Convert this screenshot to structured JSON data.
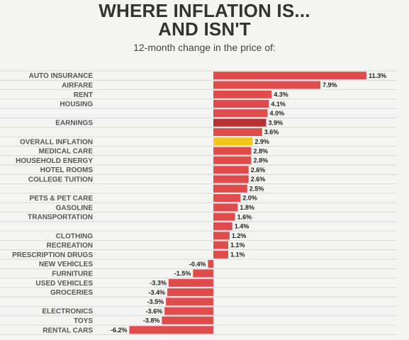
{
  "title": {
    "line1": "WHERE INFLATION IS...",
    "line2": "AND ISN'T"
  },
  "subtitle": "12-month change in the price of:",
  "colors": {
    "bar": "#e04c4c",
    "earnings": "#b63232",
    "overall": "#f5c518",
    "grid": "#cfd3d6"
  },
  "chart_data": {
    "type": "bar",
    "orientation": "horizontal",
    "title": "WHERE INFLATION IS... AND ISN'T",
    "subtitle": "12-month change in the price of:",
    "xlabel": "",
    "ylabel": "",
    "xlim": [
      -6.2,
      11.3
    ],
    "grid": true,
    "categories": [
      "AUTO INSURANCE",
      "AIRFARE",
      "RENT",
      "HOUSING",
      "",
      "EARNINGS",
      "",
      "OVERALL INFLATION",
      "MEDICAL CARE",
      "HOUSEHOLD ENERGY",
      "HOTEL ROOMS",
      "COLLEGE TUITION",
      "",
      "PETS & PET CARE",
      "GASOLINE",
      "TRANSPORTATION",
      "",
      "CLOTHING",
      "RECREATION",
      "PRESCRIPTION DRUGS",
      "NEW VEHICLES",
      "FURNITURE",
      "USED VEHICLES",
      "GROCERIES",
      "",
      "ELECTRONICS",
      "TOYS",
      "RENTAL CARS"
    ],
    "values": [
      11.3,
      7.9,
      4.3,
      4.1,
      4.0,
      3.9,
      3.6,
      2.9,
      2.8,
      2.8,
      2.6,
      2.6,
      2.5,
      2.0,
      1.8,
      1.6,
      1.4,
      1.2,
      1.1,
      1.1,
      -0.4,
      -1.5,
      -3.3,
      -3.4,
      -3.5,
      -3.6,
      -3.8,
      -6.2
    ],
    "labels": [
      "11.3%",
      "7.9%",
      "4.3%",
      "4.1%",
      "4.0%",
      "3.9%",
      "3.6%",
      "2.9%",
      "2.8%",
      "2.8%",
      "2.6%",
      "2.6%",
      "2.5%",
      "2.0%",
      "1.8%",
      "1.6%",
      "1.4%",
      "1.2%",
      "1.1%",
      "1.1%",
      "-0.4%",
      "-1.5%",
      "-3.3%",
      "-3.4%",
      "-3.5%",
      "-3.6%",
      "-3.8%",
      "-6.2%"
    ],
    "highlight": {
      "EARNINGS": "earnings",
      "OVERALL INFLATION": "overall"
    }
  }
}
